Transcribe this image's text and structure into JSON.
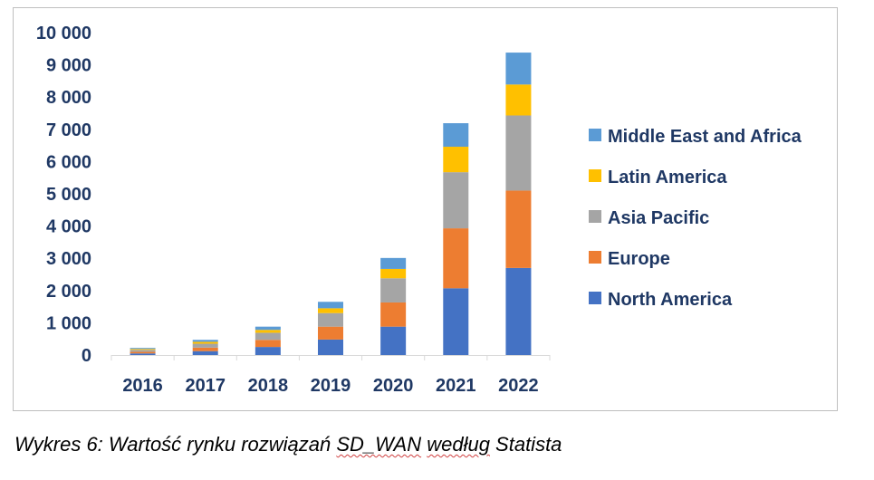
{
  "chart_data": {
    "type": "bar",
    "stacked": true,
    "categories": [
      "2016",
      "2017",
      "2018",
      "2019",
      "2020",
      "2021",
      "2022"
    ],
    "series": [
      {
        "name": "North America",
        "color": "#4472c4",
        "values": [
          50,
          120,
          250,
          480,
          880,
          2070,
          2700
        ]
      },
      {
        "name": "Europe",
        "color": "#ed7d31",
        "values": [
          50,
          110,
          220,
          400,
          750,
          1860,
          2400
        ]
      },
      {
        "name": "Asia Pacific",
        "color": "#a5a5a5",
        "values": [
          60,
          120,
          220,
          420,
          750,
          1740,
          2330
        ]
      },
      {
        "name": "Latin America",
        "color": "#ffc000",
        "values": [
          30,
          60,
          90,
          150,
          290,
          790,
          960
        ]
      },
      {
        "name": "Middle East and Africa",
        "color": "#5b9bd5",
        "values": [
          30,
          60,
          100,
          200,
          340,
          730,
          990
        ]
      }
    ],
    "yticks": [
      "0",
      "1 000",
      "2 000",
      "3 000",
      "4 000",
      "5 000",
      "6 000",
      "7 000",
      "8 000",
      "9 000",
      "10 000"
    ],
    "ylim": [
      0,
      10000
    ],
    "grid": false,
    "legend_position": "right",
    "title": "",
    "xlabel": "",
    "ylabel": ""
  },
  "caption": {
    "prefix": "Wykres 6: Wartość rynku rozwiązań ",
    "term1": "SD_WAN",
    "middle": " ",
    "term2": "według",
    "suffix": " Statista"
  }
}
